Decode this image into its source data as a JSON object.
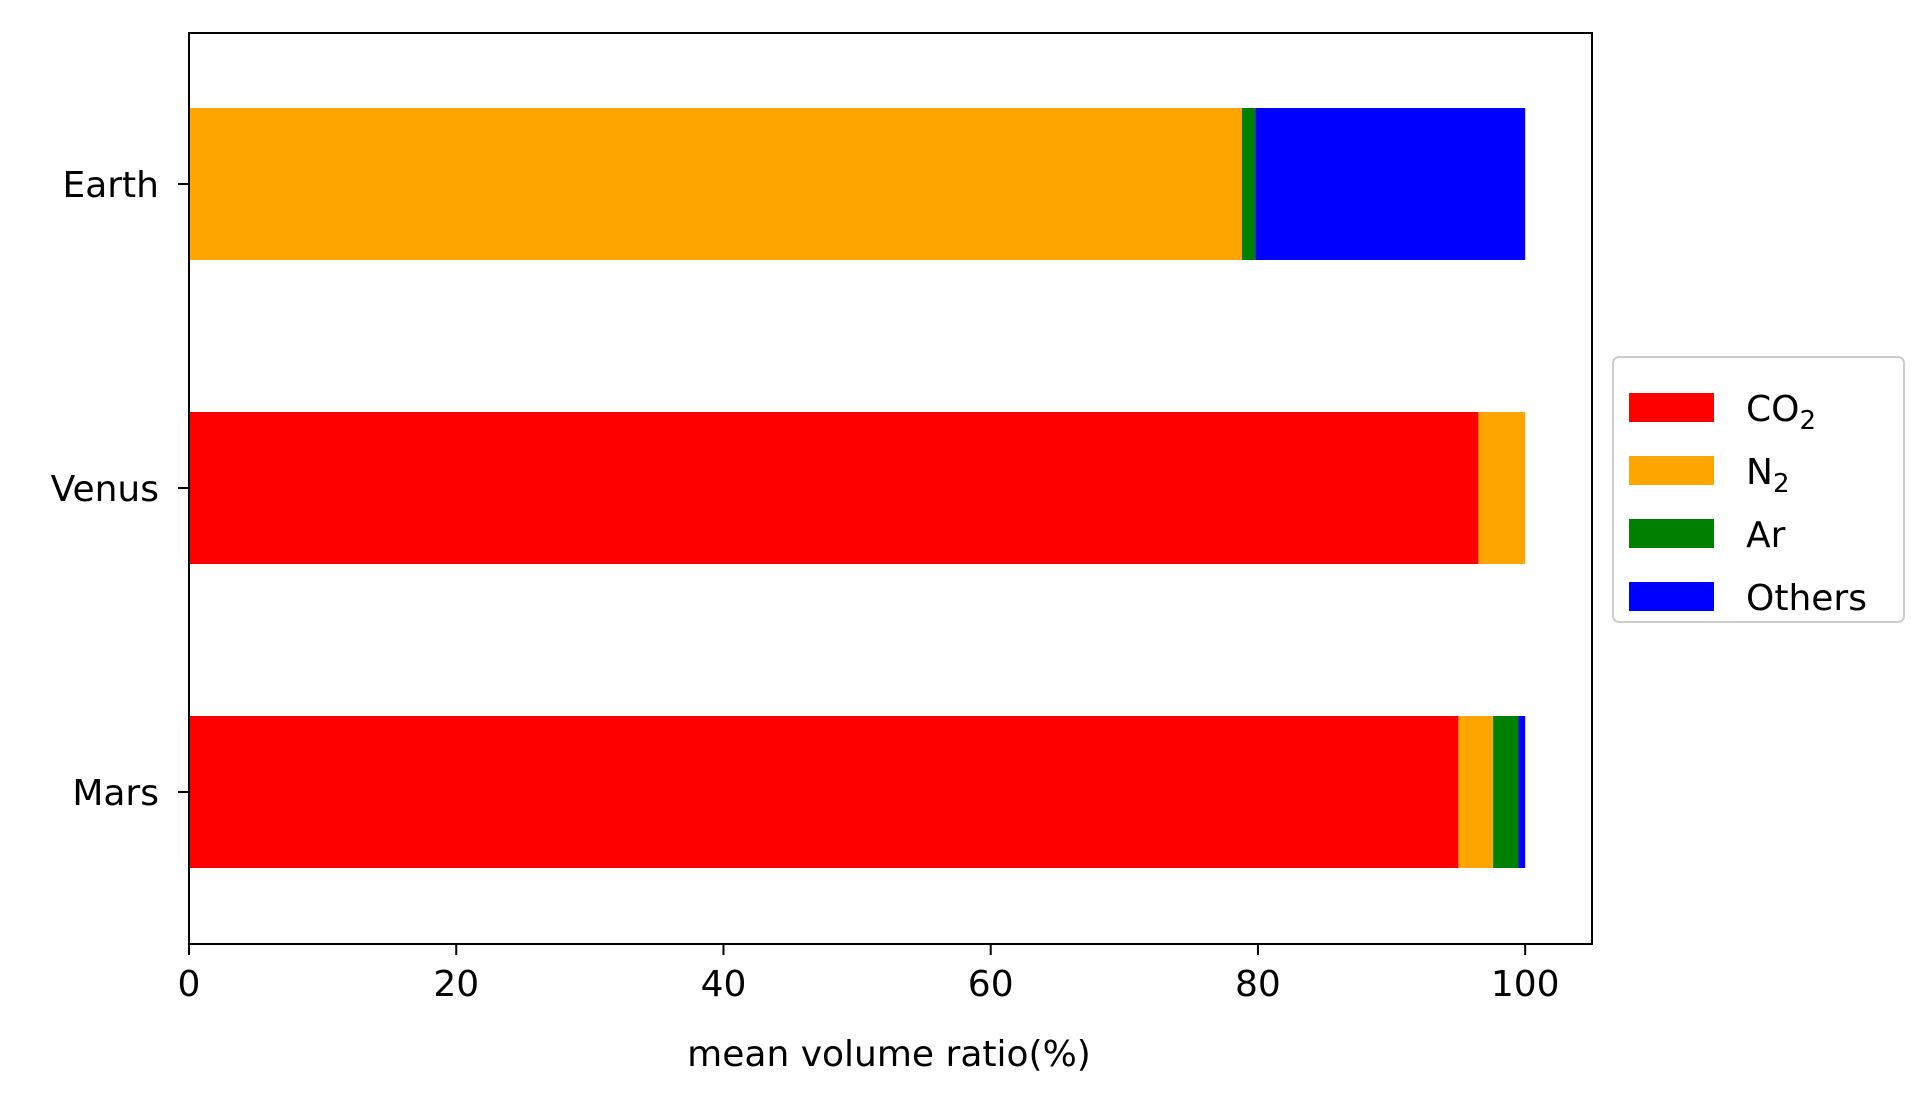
{
  "chart_data": {
    "type": "bar",
    "orientation": "horizontal",
    "stacked": true,
    "title": "",
    "xlabel": "mean volume ratio(%)",
    "ylabel": "",
    "xlim": [
      0,
      105
    ],
    "xticks": [
      0,
      20,
      40,
      60,
      80,
      100
    ],
    "categories": [
      "Mars",
      "Venus",
      "Earth"
    ],
    "series": [
      {
        "name": "CO₂",
        "color": "#ff0000",
        "values": [
          95.0,
          96.5,
          0.0
        ]
      },
      {
        "name": "N₂",
        "color": "#ffa500",
        "values": [
          2.6,
          3.5,
          78.8
        ]
      },
      {
        "name": "Ar",
        "color": "#008000",
        "values": [
          1.9,
          0.0,
          1.0
        ]
      },
      {
        "name": "Others",
        "color": "#0000ff",
        "values": [
          0.5,
          0.0,
          20.2
        ]
      }
    ],
    "grid": false,
    "legend_position": "center-right outside"
  }
}
